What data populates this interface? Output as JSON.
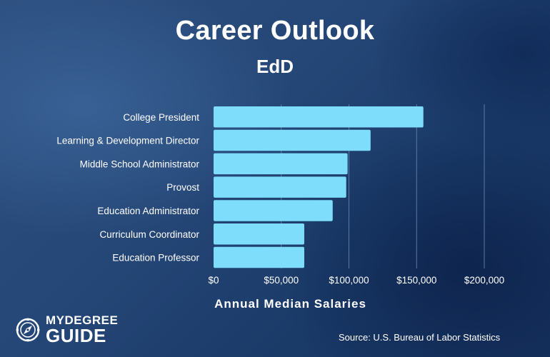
{
  "chart_data": {
    "type": "bar",
    "orientation": "horizontal",
    "title": "Career Outlook",
    "subtitle": "EdD",
    "xlabel": "Annual Median Salaries",
    "ylabel": "",
    "categories": [
      "College President",
      "Learning & Development Director",
      "Middle School Administrator",
      "Provost",
      "Education Administrator",
      "Curriculum Coordinator",
      "Education Professor"
    ],
    "values": [
      155000,
      116000,
      99000,
      98000,
      88000,
      67000,
      67000
    ],
    "xlim": [
      0,
      200000
    ],
    "xticks": [
      0,
      50000,
      100000,
      150000,
      200000
    ],
    "xtick_labels": [
      "$0",
      "$50,000",
      "$100,000",
      "$150,000",
      "$200,000"
    ],
    "grid": "vertical",
    "bar_color": "#7dddfb"
  },
  "branding": {
    "logo_line1": "MYDEGREE",
    "logo_line2": "GUIDE",
    "logo_icon": "compass-icon"
  },
  "source_text": "Source: U.S. Bureau of Labor Statistics",
  "colors": {
    "text": "#ffffff",
    "grid": "#5a7aa6"
  }
}
